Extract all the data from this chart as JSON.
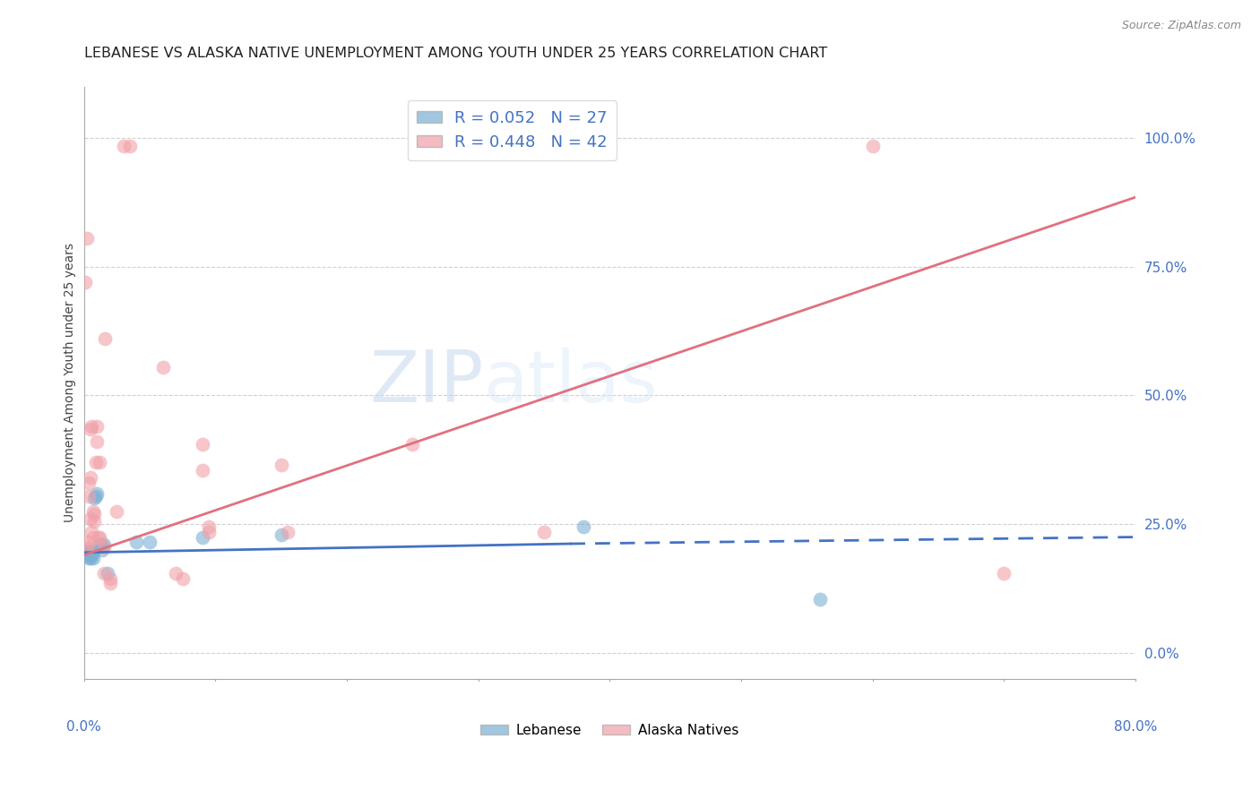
{
  "title": "LEBANESE VS ALASKA NATIVE UNEMPLOYMENT AMONG YOUTH UNDER 25 YEARS CORRELATION CHART",
  "source": "Source: ZipAtlas.com",
  "ylabel": "Unemployment Among Youth under 25 years",
  "right_yticks": [
    0.0,
    0.25,
    0.5,
    0.75,
    1.0
  ],
  "right_yticklabels": [
    "0.0%",
    "25.0%",
    "50.0%",
    "75.0%",
    "100.0%"
  ],
  "legend_entries": [
    {
      "label": "R = 0.052   N = 27",
      "color": "#6fa8dc"
    },
    {
      "label": "R = 0.448   N = 42",
      "color": "#ea9999"
    }
  ],
  "watermark_part1": "ZIP",
  "watermark_part2": "atlas",
  "lebanese_points": [
    [
      0.001,
      0.19
    ],
    [
      0.002,
      0.195
    ],
    [
      0.003,
      0.2
    ],
    [
      0.003,
      0.195
    ],
    [
      0.004,
      0.195
    ],
    [
      0.004,
      0.185
    ],
    [
      0.005,
      0.185
    ],
    [
      0.005,
      0.195
    ],
    [
      0.005,
      0.195
    ],
    [
      0.006,
      0.195
    ],
    [
      0.006,
      0.19
    ],
    [
      0.007,
      0.195
    ],
    [
      0.007,
      0.185
    ],
    [
      0.008,
      0.3
    ],
    [
      0.009,
      0.305
    ],
    [
      0.01,
      0.31
    ],
    [
      0.012,
      0.21
    ],
    [
      0.013,
      0.21
    ],
    [
      0.014,
      0.2
    ],
    [
      0.015,
      0.21
    ],
    [
      0.018,
      0.155
    ],
    [
      0.04,
      0.215
    ],
    [
      0.05,
      0.215
    ],
    [
      0.09,
      0.225
    ],
    [
      0.15,
      0.23
    ],
    [
      0.38,
      0.245
    ],
    [
      0.56,
      0.105
    ]
  ],
  "alaska_points": [
    [
      0.001,
      0.72
    ],
    [
      0.002,
      0.805
    ],
    [
      0.003,
      0.215
    ],
    [
      0.003,
      0.205
    ],
    [
      0.004,
      0.33
    ],
    [
      0.004,
      0.305
    ],
    [
      0.005,
      0.34
    ],
    [
      0.005,
      0.435
    ],
    [
      0.005,
      0.26
    ],
    [
      0.006,
      0.44
    ],
    [
      0.006,
      0.235
    ],
    [
      0.007,
      0.275
    ],
    [
      0.007,
      0.225
    ],
    [
      0.008,
      0.255
    ],
    [
      0.008,
      0.27
    ],
    [
      0.009,
      0.37
    ],
    [
      0.01,
      0.44
    ],
    [
      0.01,
      0.41
    ],
    [
      0.011,
      0.225
    ],
    [
      0.012,
      0.225
    ],
    [
      0.012,
      0.37
    ],
    [
      0.015,
      0.205
    ],
    [
      0.015,
      0.155
    ],
    [
      0.016,
      0.61
    ],
    [
      0.02,
      0.145
    ],
    [
      0.02,
      0.135
    ],
    [
      0.025,
      0.275
    ],
    [
      0.03,
      0.985
    ],
    [
      0.035,
      0.985
    ],
    [
      0.06,
      0.555
    ],
    [
      0.07,
      0.155
    ],
    [
      0.075,
      0.145
    ],
    [
      0.09,
      0.405
    ],
    [
      0.09,
      0.355
    ],
    [
      0.095,
      0.245
    ],
    [
      0.095,
      0.235
    ],
    [
      0.15,
      0.365
    ],
    [
      0.155,
      0.235
    ],
    [
      0.25,
      0.405
    ],
    [
      0.35,
      0.235
    ],
    [
      0.6,
      0.985
    ],
    [
      0.7,
      0.155
    ]
  ],
  "lebanese_line_solid": {
    "x0": 0.0,
    "y0": 0.195,
    "x1": 0.37,
    "y1": 0.212
  },
  "lebanese_line_dash": {
    "x0": 0.37,
    "y0": 0.212,
    "x1": 0.8,
    "y1": 0.225
  },
  "alaska_line": {
    "x0": 0.0,
    "y0": 0.19,
    "x1": 0.8,
    "y1": 0.885
  },
  "leb_line_color": "#4472c4",
  "alaska_line_color": "#e07080",
  "xlim": [
    0.0,
    0.8
  ],
  "ylim": [
    -0.05,
    1.1
  ],
  "title_color": "#222222",
  "title_fontsize": 11.5,
  "axis_label_color": "#4472c4",
  "grid_color": "#cccccc",
  "lebanese_color": "#7bafd4",
  "alaska_color": "#f0a0a8",
  "marker_size": 130,
  "marker_alpha": 0.6
}
